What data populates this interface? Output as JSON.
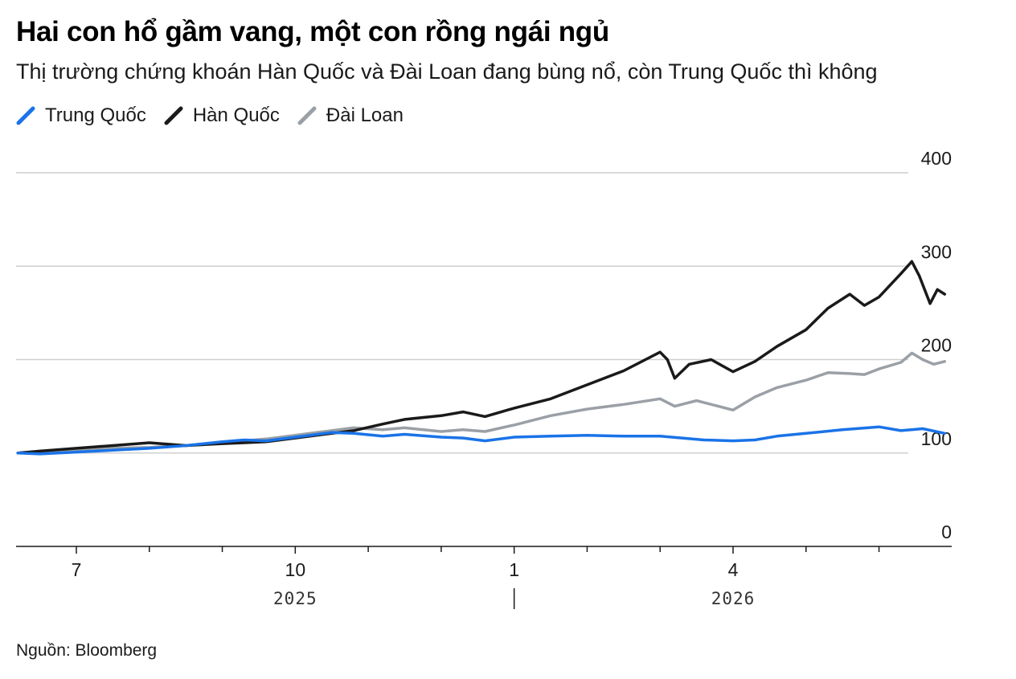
{
  "title": "Hai con hổ gầm vang, một con rồng ngái ngủ",
  "subtitle": "Thị trường chứng khoán Hàn Quốc và Đài Loan đang bùng nổ, còn Trung Quốc thì không",
  "source": "Nguồn: Bloomberg",
  "chart_data": {
    "type": "line",
    "ylim": [
      0,
      400
    ],
    "yticks": [
      "0",
      "100",
      "200",
      "300",
      "400"
    ],
    "xticks": [
      {
        "label": "7",
        "month": 6
      },
      {
        "label": "10",
        "month": 9
      },
      {
        "label": "1",
        "month": 12
      },
      {
        "label": "4",
        "month": 15
      }
    ],
    "years": [
      {
        "label": "2025",
        "month": 9
      },
      {
        "label": "2026",
        "month": 15
      }
    ],
    "legend_position": "top-left",
    "grid": true,
    "series": [
      {
        "name": "Trung Quốc",
        "color": "#1a73e8",
        "points": [
          [
            5.2,
            100
          ],
          [
            5.5,
            99
          ],
          [
            6,
            101
          ],
          [
            6.5,
            103
          ],
          [
            7,
            105
          ],
          [
            7.5,
            108
          ],
          [
            8,
            112
          ],
          [
            8.3,
            114
          ],
          [
            8.6,
            113
          ],
          [
            9,
            117
          ],
          [
            9.5,
            122
          ],
          [
            9.8,
            121
          ],
          [
            10.2,
            118
          ],
          [
            10.5,
            120
          ],
          [
            11,
            117
          ],
          [
            11.3,
            116
          ],
          [
            11.6,
            113
          ],
          [
            12,
            117
          ],
          [
            12.5,
            118
          ],
          [
            13,
            119
          ],
          [
            13.5,
            118
          ],
          [
            14,
            118
          ],
          [
            14.3,
            116
          ],
          [
            14.6,
            114
          ],
          [
            15,
            113
          ],
          [
            15.3,
            114
          ],
          [
            15.6,
            118
          ],
          [
            16,
            121
          ],
          [
            16.5,
            125
          ],
          [
            17,
            128
          ],
          [
            17.3,
            124
          ],
          [
            17.6,
            126
          ],
          [
            17.9,
            121
          ]
        ]
      },
      {
        "name": "Hàn Quốc",
        "color": "#1a1a1a",
        "points": [
          [
            5.2,
            100
          ],
          [
            5.5,
            102
          ],
          [
            6,
            105
          ],
          [
            6.5,
            108
          ],
          [
            7,
            111
          ],
          [
            7.5,
            108
          ],
          [
            8,
            110
          ],
          [
            8.3,
            111
          ],
          [
            8.6,
            112
          ],
          [
            9,
            116
          ],
          [
            9.5,
            121
          ],
          [
            9.8,
            124
          ],
          [
            10.2,
            131
          ],
          [
            10.5,
            136
          ],
          [
            11,
            140
          ],
          [
            11.3,
            144
          ],
          [
            11.6,
            139
          ],
          [
            12,
            148
          ],
          [
            12.5,
            158
          ],
          [
            13,
            173
          ],
          [
            13.5,
            188
          ],
          [
            14,
            208
          ],
          [
            14.1,
            200
          ],
          [
            14.2,
            180
          ],
          [
            14.4,
            195
          ],
          [
            14.7,
            200
          ],
          [
            15,
            187
          ],
          [
            15.3,
            198
          ],
          [
            15.6,
            214
          ],
          [
            16,
            232
          ],
          [
            16.3,
            255
          ],
          [
            16.6,
            270
          ],
          [
            16.8,
            258
          ],
          [
            17,
            267
          ],
          [
            17.3,
            292
          ],
          [
            17.45,
            305
          ],
          [
            17.55,
            290
          ],
          [
            17.7,
            260
          ],
          [
            17.8,
            275
          ],
          [
            17.9,
            270
          ]
        ]
      },
      {
        "name": "Đài Loan",
        "color": "#9aa0a6",
        "points": [
          [
            5.2,
            100
          ],
          [
            5.5,
            101
          ],
          [
            6,
            103
          ],
          [
            6.5,
            105
          ],
          [
            7,
            106
          ],
          [
            7.5,
            108
          ],
          [
            8,
            111
          ],
          [
            8.3,
            113
          ],
          [
            8.6,
            115
          ],
          [
            9,
            119
          ],
          [
            9.5,
            124
          ],
          [
            9.8,
            127
          ],
          [
            10.2,
            125
          ],
          [
            10.5,
            127
          ],
          [
            11,
            123
          ],
          [
            11.3,
            125
          ],
          [
            11.6,
            123
          ],
          [
            12,
            130
          ],
          [
            12.5,
            140
          ],
          [
            13,
            147
          ],
          [
            13.5,
            152
          ],
          [
            14,
            158
          ],
          [
            14.2,
            150
          ],
          [
            14.5,
            156
          ],
          [
            14.8,
            150
          ],
          [
            15,
            146
          ],
          [
            15.3,
            160
          ],
          [
            15.6,
            170
          ],
          [
            16,
            178
          ],
          [
            16.3,
            186
          ],
          [
            16.6,
            185
          ],
          [
            16.8,
            184
          ],
          [
            17,
            190
          ],
          [
            17.3,
            197
          ],
          [
            17.45,
            207
          ],
          [
            17.6,
            200
          ],
          [
            17.75,
            195
          ],
          [
            17.9,
            198
          ]
        ]
      }
    ]
  }
}
